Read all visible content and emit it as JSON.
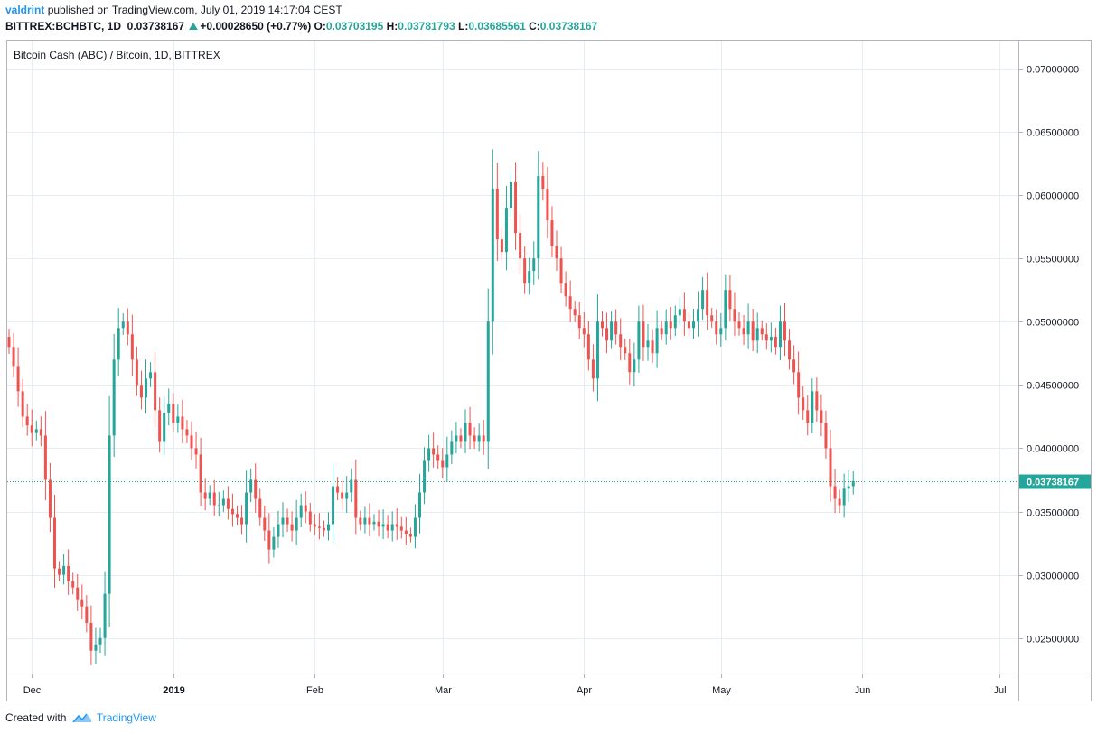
{
  "header": {
    "user": "valdrint",
    "published_text": "published on TradingView.com, July 01, 2019 14:17:04 CEST",
    "symbol": "BITTREX:BCHBTC, 1D",
    "last": "0.03738167",
    "change": "+0.00028650 (+0.77%)",
    "o_label": "O:",
    "o": "0.03703195",
    "h_label": "H:",
    "h": "0.03781793",
    "l_label": "L:",
    "l": "0.03685561",
    "c_label": "C:",
    "c": "0.03738167"
  },
  "legend": "Bitcoin Cash (ABC) / Bitcoin, 1D, BITTREX",
  "footer": {
    "created_with": "Created with",
    "brand": "TradingView"
  },
  "colors": {
    "up": "#26a69a",
    "down": "#ef5350",
    "grid": "#e6edf3",
    "axis": "#888888",
    "price_line": "#26a69a"
  },
  "chart_data": {
    "type": "candlestick",
    "title": "Bitcoin Cash (ABC) / Bitcoin, 1D, BITTREX",
    "x_ticks": [
      "Dec",
      "2019",
      "Feb",
      "Mar",
      "Apr",
      "May",
      "Jun",
      "Jul"
    ],
    "y_ticks": [
      "0.07000000",
      "0.06500000",
      "0.06000000",
      "0.05500000",
      "0.05000000",
      "0.04500000",
      "0.04000000",
      "0.03500000",
      "0.03000000",
      "0.02500000"
    ],
    "ylim": [
      0.0222,
      0.0722
    ],
    "last_price": 0.03738167,
    "last_price_label": "0.03738167",
    "grid": true,
    "date_range": [
      "2018-11-26",
      "2019-07-01"
    ],
    "close": [
      0.048,
      0.0465,
      0.0445,
      0.0425,
      0.0418,
      0.0412,
      0.0415,
      0.041,
      0.0375,
      0.0345,
      0.0305,
      0.03,
      0.0307,
      0.0295,
      0.029,
      0.028,
      0.0275,
      0.0262,
      0.024,
      0.0245,
      0.025,
      0.0285,
      0.041,
      0.047,
      0.0495,
      0.05,
      0.049,
      0.047,
      0.045,
      0.044,
      0.0455,
      0.046,
      0.043,
      0.0405,
      0.0428,
      0.0435,
      0.042,
      0.0425,
      0.0415,
      0.041,
      0.04,
      0.0395,
      0.0365,
      0.036,
      0.0365,
      0.0355,
      0.0355,
      0.036,
      0.0352,
      0.0348,
      0.0345,
      0.034,
      0.0365,
      0.0375,
      0.036,
      0.0345,
      0.0335,
      0.032,
      0.033,
      0.034,
      0.0345,
      0.034,
      0.0335,
      0.0345,
      0.0355,
      0.035,
      0.034,
      0.0338,
      0.0337,
      0.0335,
      0.034,
      0.037,
      0.0365,
      0.036,
      0.0365,
      0.0375,
      0.0345,
      0.034,
      0.0345,
      0.034,
      0.0342,
      0.0338,
      0.034,
      0.0335,
      0.034,
      0.0338,
      0.0335,
      0.0332,
      0.033,
      0.0345,
      0.0365,
      0.039,
      0.04,
      0.0395,
      0.039,
      0.0385,
      0.0395,
      0.0405,
      0.041,
      0.0405,
      0.042,
      0.041,
      0.0405,
      0.041,
      0.0405,
      0.05,
      0.0605,
      0.0565,
      0.0555,
      0.059,
      0.061,
      0.057,
      0.055,
      0.053,
      0.054,
      0.055,
      0.0615,
      0.0605,
      0.058,
      0.056,
      0.055,
      0.053,
      0.052,
      0.051,
      0.0505,
      0.0495,
      0.049,
      0.047,
      0.0455,
      0.05,
      0.0495,
      0.0485,
      0.05,
      0.049,
      0.048,
      0.0475,
      0.046,
      0.047,
      0.05,
      0.048,
      0.0485,
      0.0475,
      0.0495,
      0.049,
      0.05,
      0.0495,
      0.0505,
      0.051,
      0.05,
      0.0495,
      0.05,
      0.051,
      0.0525,
      0.0505,
      0.05,
      0.049,
      0.0495,
      0.0525,
      0.051,
      0.05,
      0.0495,
      0.049,
      0.05,
      0.0485,
      0.0495,
      0.049,
      0.0485,
      0.0488,
      0.048,
      0.05,
      0.0485,
      0.047,
      0.046,
      0.044,
      0.043,
      0.042,
      0.0445,
      0.043,
      0.042,
      0.04,
      0.037,
      0.036,
      0.0355,
      0.0368,
      0.037,
      0.0374
    ]
  }
}
